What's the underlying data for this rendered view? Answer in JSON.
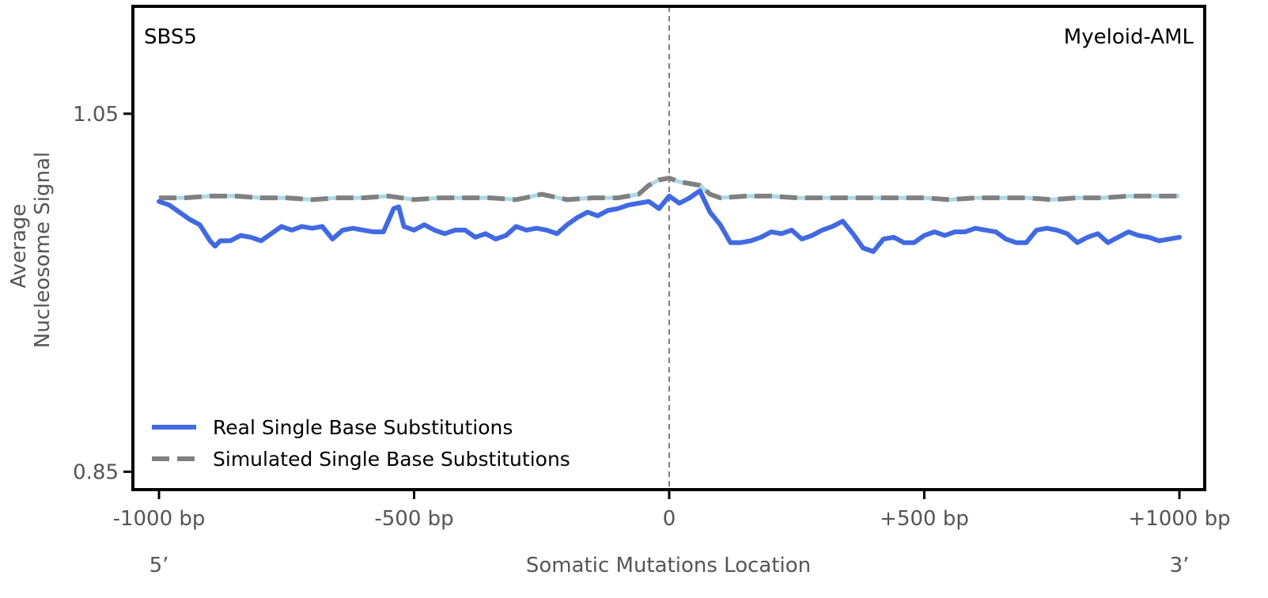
{
  "chart_data": {
    "type": "line",
    "panel_label_left": "SBS5",
    "panel_label_right": "Myeloid-AML",
    "ylabel_line1": "Average",
    "ylabel_line2": "Nucleosome Signal",
    "xlabel": "Somatic Mutations Location",
    "end_label_left": "5’",
    "end_label_right": "3’",
    "xlim": [
      -1000,
      1000
    ],
    "ylim": [
      0.84,
      1.11
    ],
    "x_ticks": [
      {
        "value": -1000,
        "label": "-1000 bp"
      },
      {
        "value": -500,
        "label": "-500 bp"
      },
      {
        "value": 0,
        "label": "0"
      },
      {
        "value": 500,
        "label": "+500 bp"
      },
      {
        "value": 1000,
        "label": "+1000 bp"
      }
    ],
    "y_ticks": [
      {
        "value": 1.05,
        "label": "1.05"
      },
      {
        "value": 0.85,
        "label": "0.85"
      }
    ],
    "center_line_x": 0,
    "colors": {
      "real": "#4169e1",
      "simulated": "#808080",
      "simulated_underlay": "#add8e6",
      "center_line": "#808080",
      "frame": "#000000"
    },
    "legend": {
      "position": "lower-left",
      "entries": [
        {
          "label": "Real Single Base Substitutions",
          "style": "solid",
          "series": "real"
        },
        {
          "label": "Simulated Single Base Substitutions",
          "style": "dashed",
          "series": "simulated"
        }
      ]
    },
    "series": [
      {
        "name": "Real Single Base Substitutions",
        "x": [
          -1000,
          -980,
          -960,
          -940,
          -920,
          -900,
          -890,
          -880,
          -860,
          -840,
          -820,
          -800,
          -780,
          -760,
          -740,
          -720,
          -700,
          -680,
          -660,
          -640,
          -620,
          -600,
          -580,
          -560,
          -540,
          -530,
          -520,
          -500,
          -480,
          -460,
          -440,
          -420,
          -400,
          -380,
          -360,
          -340,
          -320,
          -300,
          -280,
          -260,
          -240,
          -220,
          -200,
          -180,
          -160,
          -140,
          -120,
          -100,
          -80,
          -60,
          -40,
          -20,
          0,
          20,
          40,
          50,
          60,
          80,
          100,
          120,
          140,
          160,
          180,
          200,
          220,
          240,
          260,
          280,
          300,
          320,
          340,
          360,
          380,
          400,
          420,
          440,
          460,
          480,
          500,
          520,
          540,
          560,
          580,
          600,
          620,
          640,
          660,
          680,
          700,
          720,
          740,
          760,
          780,
          800,
          820,
          840,
          860,
          880,
          900,
          920,
          940,
          960,
          980,
          1000
        ],
        "values": [
          1.001,
          0.999,
          0.995,
          0.991,
          0.988,
          0.979,
          0.976,
          0.979,
          0.979,
          0.982,
          0.981,
          0.979,
          0.983,
          0.987,
          0.985,
          0.987,
          0.986,
          0.987,
          0.98,
          0.985,
          0.986,
          0.985,
          0.984,
          0.984,
          0.997,
          0.998,
          0.987,
          0.985,
          0.988,
          0.985,
          0.983,
          0.985,
          0.985,
          0.981,
          0.983,
          0.98,
          0.982,
          0.987,
          0.985,
          0.986,
          0.985,
          0.983,
          0.988,
          0.992,
          0.995,
          0.993,
          0.996,
          0.997,
          0.999,
          1.0,
          1.001,
          0.997,
          1.004,
          1.0,
          1.003,
          1.005,
          1.007,
          0.995,
          0.988,
          0.978,
          0.978,
          0.979,
          0.981,
          0.984,
          0.983,
          0.985,
          0.98,
          0.982,
          0.985,
          0.987,
          0.99,
          0.983,
          0.975,
          0.973,
          0.98,
          0.981,
          0.978,
          0.978,
          0.982,
          0.984,
          0.982,
          0.984,
          0.984,
          0.986,
          0.985,
          0.984,
          0.98,
          0.978,
          0.978,
          0.985,
          0.986,
          0.985,
          0.983,
          0.978,
          0.981,
          0.983,
          0.978,
          0.981,
          0.984,
          0.982,
          0.981,
          0.979,
          0.98,
          0.981
        ]
      },
      {
        "name": "Simulated Single Base Substitutions",
        "x": [
          -1000,
          -950,
          -900,
          -850,
          -800,
          -750,
          -700,
          -650,
          -600,
          -550,
          -500,
          -450,
          -400,
          -350,
          -300,
          -250,
          -200,
          -150,
          -100,
          -60,
          -40,
          -20,
          0,
          20,
          40,
          60,
          80,
          100,
          150,
          200,
          250,
          300,
          350,
          400,
          450,
          500,
          550,
          600,
          650,
          700,
          750,
          800,
          850,
          900,
          950,
          1000
        ],
        "values": [
          1.003,
          1.003,
          1.004,
          1.004,
          1.003,
          1.003,
          1.002,
          1.003,
          1.003,
          1.004,
          1.002,
          1.003,
          1.003,
          1.003,
          1.002,
          1.005,
          1.002,
          1.003,
          1.003,
          1.005,
          1.01,
          1.013,
          1.014,
          1.012,
          1.011,
          1.01,
          1.005,
          1.003,
          1.004,
          1.004,
          1.003,
          1.003,
          1.003,
          1.003,
          1.003,
          1.003,
          1.002,
          1.003,
          1.003,
          1.003,
          1.002,
          1.003,
          1.003,
          1.004,
          1.004,
          1.004
        ]
      }
    ]
  }
}
